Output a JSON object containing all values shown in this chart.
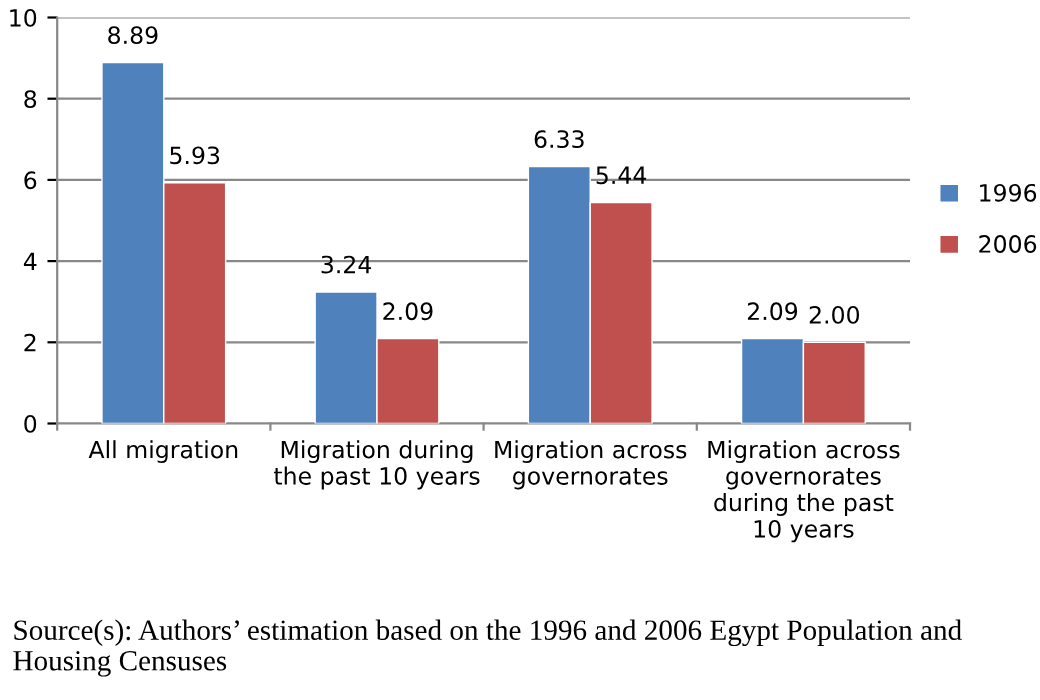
{
  "chart_data": {
    "type": "bar",
    "categories": [
      "All migration",
      "Migration during the past 10 years",
      "Migration across governorates",
      "Migration across governorates during the past 10 years"
    ],
    "series": [
      {
        "name": "1996",
        "color": "#4f81bd",
        "values": [
          8.89,
          3.24,
          6.33,
          2.09
        ]
      },
      {
        "name": "2006",
        "color": "#c0504d",
        "values": [
          5.93,
          2.09,
          5.44,
          2.0
        ]
      }
    ],
    "value_labels": [
      [
        "8.89",
        "3.24",
        "6.33",
        "2.09"
      ],
      [
        "5.93",
        "2.09",
        "5.44",
        "2.00"
      ]
    ],
    "ylim": [
      0,
      10
    ],
    "yticks": [
      0,
      2,
      4,
      6,
      8,
      10
    ],
    "grid": "y",
    "legend": "right",
    "annotations": [
      "Source(s): Authors’ estimation based on the 1996 and 2006 Egypt Population and Housing Censuses"
    ]
  }
}
